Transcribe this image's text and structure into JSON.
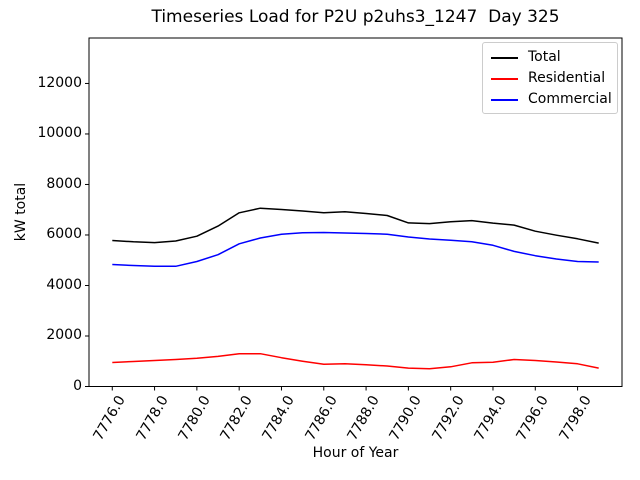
{
  "figure": {
    "background": "#ffffff"
  },
  "chart_data": {
    "type": "line",
    "title": "Timeseries Load for P2U p2uhs3_1247  Day 325",
    "xlabel": "Hour of Year",
    "ylabel": "kW total",
    "grid": false,
    "legend_position": "upper right",
    "xlim": [
      7774.9,
      7800.1
    ],
    "ylim": [
      0,
      13800
    ],
    "xticks": [
      7776,
      7778,
      7780,
      7782,
      7784,
      7786,
      7788,
      7790,
      7792,
      7794,
      7796,
      7798
    ],
    "xtick_labels": [
      "7776.0",
      "7778.0",
      "7780.0",
      "7782.0",
      "7784.0",
      "7786.0",
      "7788.0",
      "7790.0",
      "7792.0",
      "7794.0",
      "7796.0",
      "7798.0"
    ],
    "xtick_rotation": 60,
    "yticks": [
      0,
      2000,
      4000,
      6000,
      8000,
      10000,
      12000
    ],
    "ytick_labels": [
      "0",
      "2000",
      "4000",
      "6000",
      "8000",
      "10000",
      "12000"
    ],
    "x": [
      7776,
      7777,
      7778,
      7779,
      7780,
      7781,
      7782,
      7783,
      7784,
      7785,
      7786,
      7787,
      7788,
      7789,
      7790,
      7791,
      7792,
      7793,
      7794,
      7795,
      7796,
      7797,
      7798,
      7799
    ],
    "series": [
      {
        "name": "Total",
        "color": "#000000",
        "values": [
          5780,
          5730,
          5700,
          5760,
          5950,
          6350,
          6880,
          7060,
          7010,
          6950,
          6880,
          6920,
          6850,
          6770,
          6480,
          6450,
          6520,
          6570,
          6470,
          6390,
          6150,
          5990,
          5850,
          5680
        ]
      },
      {
        "name": "Residential",
        "color": "#ff0000",
        "values": [
          950,
          990,
          1030,
          1070,
          1120,
          1190,
          1300,
          1300,
          1140,
          1000,
          880,
          900,
          860,
          810,
          730,
          700,
          780,
          940,
          960,
          1070,
          1030,
          970,
          900,
          730
        ]
      },
      {
        "name": "Commercial",
        "color": "#0000ff",
        "values": [
          4830,
          4790,
          4760,
          4760,
          4950,
          5220,
          5650,
          5880,
          6030,
          6090,
          6100,
          6080,
          6060,
          6030,
          5920,
          5840,
          5790,
          5730,
          5590,
          5350,
          5180,
          5050,
          4950,
          4930
        ]
      }
    ],
    "line_width": 1.5
  }
}
